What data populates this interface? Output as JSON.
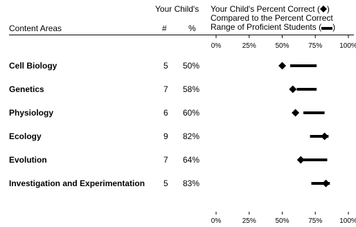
{
  "header": {
    "your_child": "Your Child's",
    "percent_correct_line1": "Your Child's Percent Correct (",
    "percent_correct_line1_end": ")",
    "percent_correct_line2": "Compared to the Percent Correct",
    "percent_correct_line3": "Range of Proficient Students (",
    "percent_correct_line3_end": ")",
    "content_areas": "Content Areas",
    "count_label": "#",
    "percent_label": "%",
    "diamond_icon": "diamond-icon",
    "bar_icon": "range-bar-icon"
  },
  "chart_data": {
    "type": "dot-range",
    "x_ticks": [
      0,
      25,
      50,
      75,
      100
    ],
    "x_tick_labels": [
      "0%",
      "25%",
      "50%",
      "75%",
      "100%"
    ],
    "xlim": [
      0,
      100
    ],
    "tick_labels_top_and_bottom": true,
    "series": [
      {
        "name": "Your Child's Percent Correct",
        "marker": "diamond"
      },
      {
        "name": "Range of Proficient Students",
        "marker": "bar"
      }
    ],
    "rows": [
      {
        "area": "Cell Biology",
        "count": "5",
        "percent": "50%",
        "value": 50,
        "range": [
          56,
          76
        ]
      },
      {
        "area": "Genetics",
        "count": "7",
        "percent": "58%",
        "value": 58,
        "range": [
          61,
          76
        ]
      },
      {
        "area": "Physiology",
        "count": "6",
        "percent": "60%",
        "value": 60,
        "range": [
          66,
          82
        ]
      },
      {
        "area": "Ecology",
        "count": "9",
        "percent": "82%",
        "value": 82,
        "range": [
          71,
          85
        ]
      },
      {
        "area": "Evolution",
        "count": "7",
        "percent": "64%",
        "value": 64,
        "range": [
          66,
          84
        ]
      },
      {
        "area": "Investigation and Experimentation",
        "count": "5",
        "percent": "83%",
        "value": 83,
        "range": [
          72,
          86
        ]
      }
    ]
  }
}
